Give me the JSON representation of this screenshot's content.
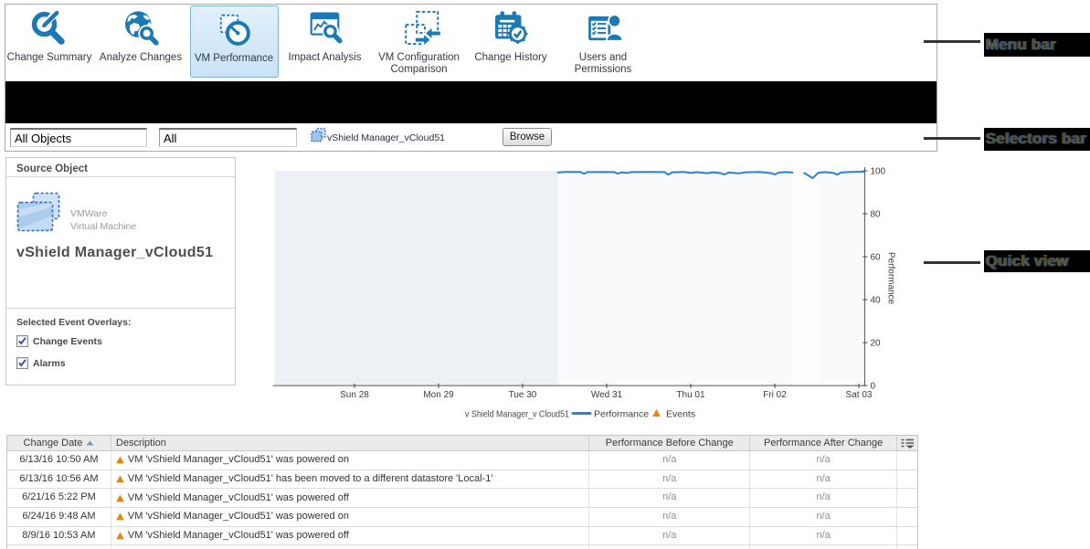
{
  "menu": {
    "items": [
      {
        "label": "Change Summary",
        "icon": "change-summary-icon",
        "selected": false
      },
      {
        "label": "Analyze Changes",
        "icon": "analyze-changes-icon",
        "selected": false
      },
      {
        "label": "VM Performance",
        "icon": "vm-performance-icon",
        "selected": true
      },
      {
        "label": "Impact Analysis",
        "icon": "impact-analysis-icon",
        "selected": false
      },
      {
        "label": "VM Configuration Comparison",
        "icon": "vm-configuration-comparison-icon",
        "selected": false
      },
      {
        "label": "Change History",
        "icon": "change-history-icon",
        "selected": false
      },
      {
        "label": "Users and Permissions",
        "icon": "users-permissions-icon",
        "selected": false
      }
    ]
  },
  "selectors": {
    "object_selector_value": "All Objects",
    "type_selector_value": "All",
    "selected_object_icon": "vm-icon",
    "selected_object_label": "vShield Manager_vCloud51",
    "browse_button": "Browse"
  },
  "quick_view": {
    "panel_title": "Source Object",
    "object_icon": "vm-icon",
    "object_kind_line1": "VMWare",
    "object_kind_line2": "Virtual Machine",
    "object_name": "vShield Manager_vCloud51",
    "overlays_heading": "Selected Event Overlays:",
    "overlays": [
      {
        "label": "Change Events",
        "checked": true
      },
      {
        "label": "Alarms",
        "checked": true
      }
    ]
  },
  "chart_data": {
    "type": "line",
    "ylabel": "Performance",
    "ylim": [
      0,
      100
    ],
    "yticks": [
      0,
      20,
      40,
      60,
      80,
      100
    ],
    "x_tick_labels": [
      "Sun 28",
      "Mon 29",
      "Tue 30",
      "Wed 31",
      "Thu 01",
      "Fri 02",
      "Sat 03"
    ],
    "x_range_days": [
      0.05,
      7.07
    ],
    "grid": false,
    "legend_position": "bottom",
    "plot_bg_no_data": "#edf1f6",
    "plot_bg_data": "#f8fafc",
    "no_data_before_day": 3.42,
    "highlight_band_days": [
      6.21,
      6.51
    ],
    "series": [
      {
        "name": "Performance",
        "color": "#2e7fd6",
        "legend_prefix": "v Shield Manager_v Cloud51",
        "segments": [
          [
            [
              3.42,
              99.2
            ],
            [
              3.5,
              99.5
            ],
            [
              3.69,
              99.5
            ],
            [
              3.73,
              98.6
            ],
            [
              3.77,
              99.4
            ],
            [
              3.96,
              99.5
            ],
            [
              4.09,
              99.4
            ],
            [
              4.13,
              98.7
            ],
            [
              4.18,
              99.3
            ],
            [
              4.24,
              99.0
            ],
            [
              4.29,
              99.4
            ],
            [
              4.5,
              99.5
            ],
            [
              4.69,
              99.4
            ],
            [
              4.73,
              98.2
            ],
            [
              4.78,
              99.3
            ],
            [
              4.92,
              99.5
            ],
            [
              5.0,
              99.0
            ],
            [
              5.07,
              99.4
            ],
            [
              5.19,
              98.9
            ],
            [
              5.27,
              99.3
            ],
            [
              5.36,
              98.9
            ],
            [
              5.4,
              98.3
            ],
            [
              5.45,
              99.2
            ],
            [
              5.57,
              98.8
            ],
            [
              5.65,
              99.3
            ],
            [
              5.82,
              99.5
            ],
            [
              5.96,
              98.9
            ],
            [
              6.0,
              98.3
            ],
            [
              6.05,
              99.2
            ],
            [
              6.13,
              99.4
            ],
            [
              6.21,
              99.2
            ]
          ],
          [
            [
              6.35,
              99.0
            ],
            [
              6.45,
              96.6
            ],
            [
              6.52,
              99.1
            ],
            [
              6.6,
              99.4
            ],
            [
              6.7,
              99.0
            ],
            [
              6.74,
              98.2
            ],
            [
              6.79,
              99.2
            ],
            [
              6.9,
              99.5
            ],
            [
              7.06,
              99.6
            ]
          ]
        ]
      }
    ],
    "events_legend": {
      "label": "Events",
      "color": "#e8861a",
      "marker": "triangle"
    }
  },
  "table": {
    "columns": [
      {
        "label": "Change Date",
        "sort": "asc",
        "align": "center"
      },
      {
        "label": "Description",
        "align": "left"
      },
      {
        "label": "Performance Before Change",
        "align": "center"
      },
      {
        "label": "Performance After Change",
        "align": "center"
      }
    ],
    "column_menu_icon": "column-chooser-icon",
    "row_warning_icon": "warning-triangle-icon",
    "rows": [
      {
        "date": "6/13/16 10:50 AM",
        "description": "VM 'vShield Manager_vCloud51' was powered on",
        "before": "n/a",
        "after": "n/a"
      },
      {
        "date": "6/13/16 10:56 AM",
        "description": "VM 'vShield Manager_vCloud51' has been moved to a different datastore 'Local-1'",
        "before": "n/a",
        "after": "n/a"
      },
      {
        "date": "6/21/16 5:22 PM",
        "description": "VM 'vShield Manager_vCloud51' was powered off",
        "before": "n/a",
        "after": "n/a"
      },
      {
        "date": "6/24/16 9:48 AM",
        "description": "VM 'vShield Manager_vCloud51' was powered on",
        "before": "n/a",
        "after": "n/a"
      },
      {
        "date": "8/9/16 10:53 AM",
        "description": "VM 'vShield Manager_vCloud51' was powered off",
        "before": "n/a",
        "after": "n/a"
      }
    ]
  },
  "callouts": [
    {
      "label": "Menu bar"
    },
    {
      "label": "Selectors bar"
    },
    {
      "label": "Quick view"
    }
  ],
  "colors": {
    "accent_blue": "#1b7ab5",
    "series_line": "#2e7fd6",
    "events_orange": "#e8861a",
    "selected_item_bg": "#d9ecfa",
    "black_bar": "#000000"
  }
}
